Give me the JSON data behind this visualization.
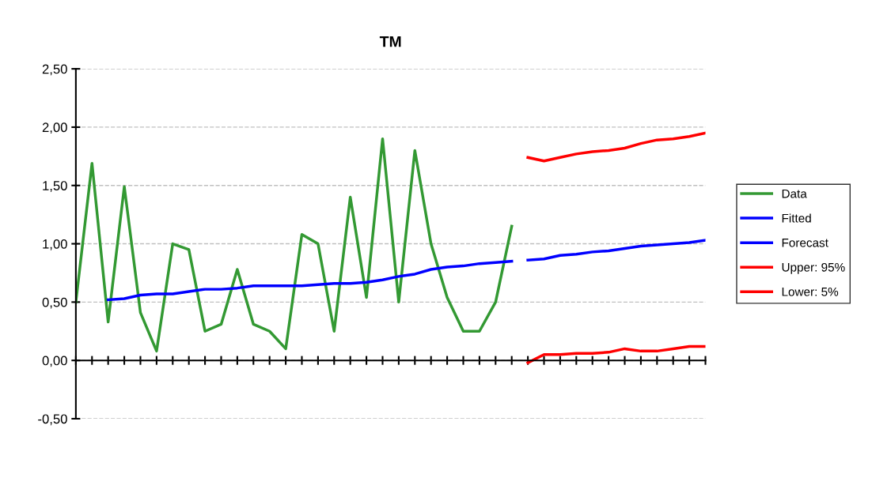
{
  "chart_data": {
    "type": "line",
    "title": "TM",
    "categories": [
      null,
      null,
      null,
      null,
      null,
      null,
      null,
      null,
      null,
      null,
      null,
      null,
      null,
      null,
      null,
      null,
      null,
      null,
      null,
      null,
      null,
      null,
      null,
      null,
      null,
      null,
      null,
      null,
      null,
      null,
      null,
      null,
      null,
      null,
      null,
      null,
      null,
      null,
      null,
      null
    ],
    "series": [
      {
        "name": "Data",
        "color": "#339933",
        "values": [
          0.5,
          1.69,
          0.33,
          1.49,
          0.41,
          0.08,
          1.0,
          0.95,
          0.25,
          0.31,
          0.78,
          0.31,
          0.25,
          0.1,
          1.08,
          1.0,
          0.25,
          1.4,
          0.54,
          1.9,
          0.5,
          1.8,
          1.0,
          0.54,
          0.25,
          0.25,
          0.5,
          1.15,
          null,
          null,
          null,
          null,
          null,
          null,
          null,
          null,
          null,
          null,
          null,
          null
        ]
      },
      {
        "name": "Fitted",
        "color": "#0000ff",
        "values": [
          null,
          null,
          0.52,
          0.53,
          0.56,
          0.57,
          0.57,
          0.59,
          0.61,
          0.61,
          0.62,
          0.64,
          0.64,
          0.64,
          0.64,
          0.65,
          0.66,
          0.66,
          0.67,
          0.69,
          0.72,
          0.74,
          0.78,
          0.8,
          0.81,
          0.83,
          0.84,
          0.85,
          null,
          null,
          null,
          null,
          null,
          null,
          null,
          null,
          null,
          null,
          null,
          null
        ]
      },
      {
        "name": "Forecast",
        "color": "#0000ff",
        "values": [
          null,
          null,
          null,
          null,
          null,
          null,
          null,
          null,
          null,
          null,
          null,
          null,
          null,
          null,
          null,
          null,
          null,
          null,
          null,
          null,
          null,
          null,
          null,
          null,
          null,
          null,
          null,
          null,
          0.86,
          0.87,
          0.9,
          0.91,
          0.93,
          0.94,
          0.96,
          0.98,
          0.99,
          1.0,
          1.01,
          1.03
        ]
      },
      {
        "name": "Upper: 95%",
        "color": "#ff0000",
        "values": [
          null,
          null,
          null,
          null,
          null,
          null,
          null,
          null,
          null,
          null,
          null,
          null,
          null,
          null,
          null,
          null,
          null,
          null,
          null,
          null,
          null,
          null,
          null,
          null,
          null,
          null,
          null,
          null,
          1.74,
          1.71,
          1.74,
          1.77,
          1.79,
          1.8,
          1.82,
          1.86,
          1.89,
          1.9,
          1.92,
          1.95
        ]
      },
      {
        "name": "Lower: 5%",
        "color": "#ff0000",
        "values": [
          null,
          null,
          null,
          null,
          null,
          null,
          null,
          null,
          null,
          null,
          null,
          null,
          null,
          null,
          null,
          null,
          null,
          null,
          null,
          null,
          null,
          null,
          null,
          null,
          null,
          null,
          null,
          null,
          -0.02,
          0.05,
          0.05,
          0.06,
          0.06,
          0.07,
          0.1,
          0.08,
          0.08,
          0.1,
          0.12,
          0.12
        ]
      }
    ],
    "ylim": [
      -0.5,
      2.5
    ],
    "yticks": [
      {
        "value": -0.5,
        "label": "-0,50"
      },
      {
        "value": 0,
        "label": "0,00"
      },
      {
        "value": 0.5,
        "label": "0,50"
      },
      {
        "value": 1.0,
        "label": "1,00"
      },
      {
        "value": 1.5,
        "label": "1,50"
      },
      {
        "value": 2.0,
        "label": "2,00"
      },
      {
        "value": 2.5,
        "label": "2,50"
      }
    ],
    "grid": "y",
    "legend": "right",
    "tick_labels": "y",
    "marker": "none",
    "line_style": "solid"
  }
}
